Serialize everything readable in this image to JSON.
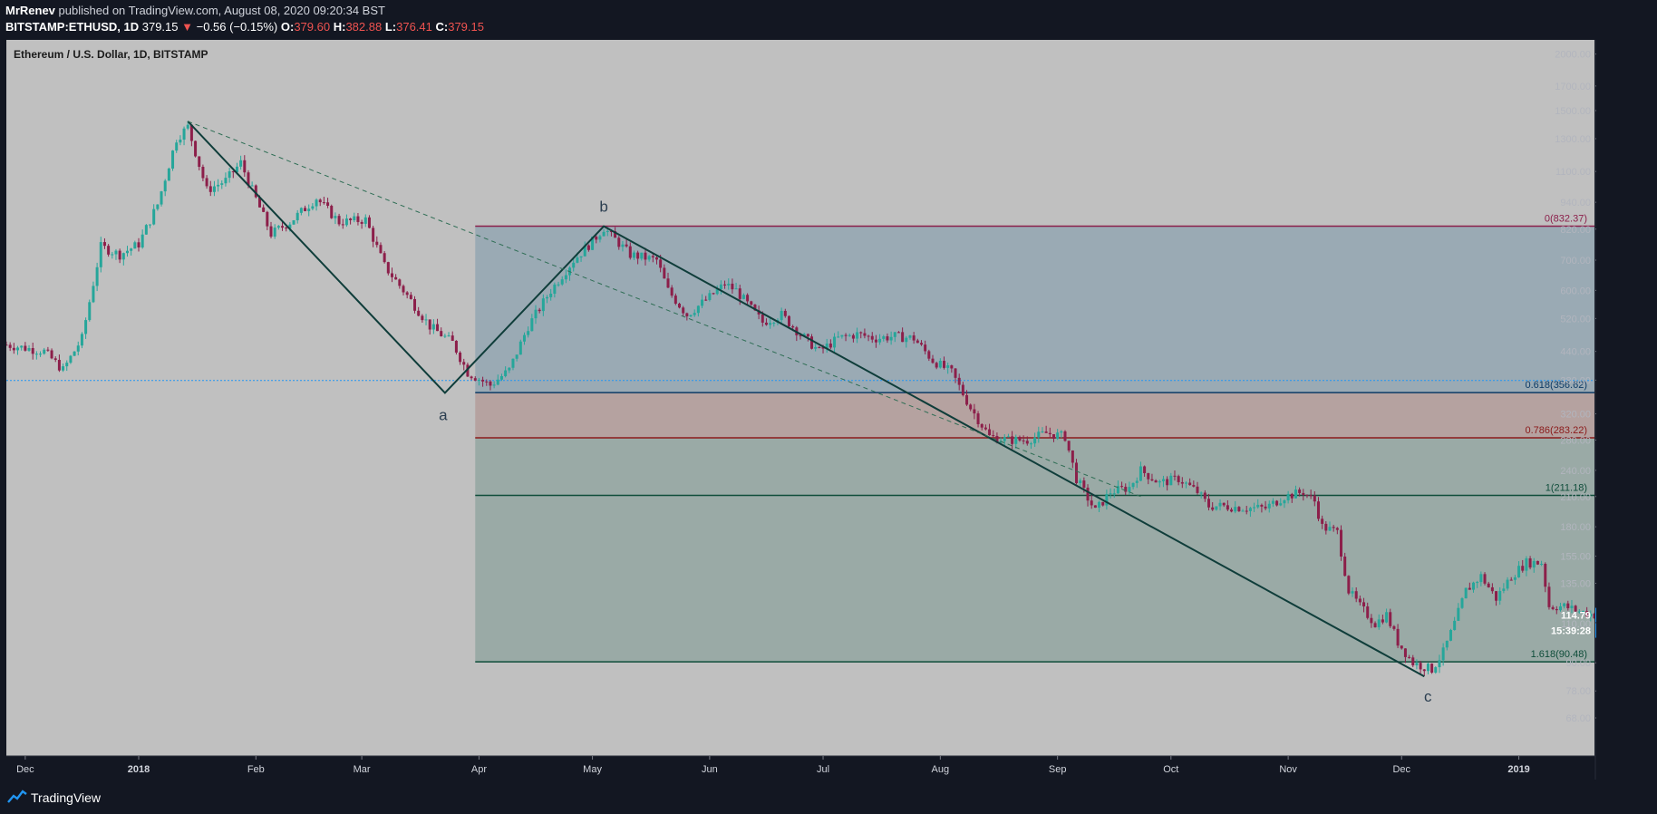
{
  "header": {
    "author": "MrRenev",
    "published": "published on TradingView.com, August 08, 2020 09:20:34 BST",
    "symbol": "BITSTAMP:ETHUSD, 1D",
    "last": "379.15",
    "change_arrow": "▼",
    "change": "−0.56 (−0.15%)",
    "o_label": "O:",
    "o": "379.60",
    "h_label": "H:",
    "h": "382.88",
    "l_label": "L:",
    "l": "376.41",
    "c_label": "C:",
    "c": "379.15"
  },
  "footer": {
    "brand": "TradingView"
  },
  "colors": {
    "bg": "#c0c0c0",
    "up": "#26a69a",
    "down": "#8c1f4a",
    "trendline": "#0f3d3a",
    "zone_top": "#9aaab4",
    "zone_mid": "#b5a2a0",
    "zone_bottom": "#9aaaa6",
    "accent": "#2196f3"
  },
  "chart_data": {
    "type": "candlestick",
    "title": "Ethereum / U.S. Dollar, 1D, BITSTAMP",
    "y_scale": "log",
    "ylim": [
      56,
      2150
    ],
    "y_ticks": [
      "2000.00",
      "1700.00",
      "1500.00",
      "1300.00",
      "1100.00",
      "940.00",
      "820.00",
      "700.00",
      "600.00",
      "520.00",
      "440.00",
      "380.00",
      "320.00",
      "280.00",
      "240.00",
      "210.00",
      "180.00",
      "155.00",
      "135.00",
      "110.00",
      "90.00",
      "78.00",
      "68.00"
    ],
    "x_ticks": [
      "Dec",
      "2018",
      "Feb",
      "Mar",
      "Apr",
      "May",
      "Jun",
      "Jul",
      "Aug",
      "Sep",
      "Oct",
      "Nov",
      "Dec",
      "2019"
    ],
    "x_tick_days": [
      5,
      35,
      66,
      94,
      125,
      155,
      186,
      216,
      247,
      278,
      308,
      339,
      369,
      400
    ],
    "x_range_days": [
      0,
      420
    ],
    "anchors": [
      {
        "day": 0,
        "price": 455
      },
      {
        "day": 10,
        "price": 440
      },
      {
        "day": 15,
        "price": 400
      },
      {
        "day": 20,
        "price": 470
      },
      {
        "day": 25,
        "price": 750
      },
      {
        "day": 30,
        "price": 720
      },
      {
        "day": 35,
        "price": 760
      },
      {
        "day": 40,
        "price": 930
      },
      {
        "day": 45,
        "price": 1300
      },
      {
        "day": 48,
        "price": 1380
      },
      {
        "day": 53,
        "price": 1000
      },
      {
        "day": 58,
        "price": 1050
      },
      {
        "day": 62,
        "price": 1150
      },
      {
        "day": 65,
        "price": 1000
      },
      {
        "day": 70,
        "price": 800
      },
      {
        "day": 75,
        "price": 850
      },
      {
        "day": 82,
        "price": 960
      },
      {
        "day": 88,
        "price": 850
      },
      {
        "day": 95,
        "price": 860
      },
      {
        "day": 100,
        "price": 680
      },
      {
        "day": 105,
        "price": 600
      },
      {
        "day": 112,
        "price": 500
      },
      {
        "day": 118,
        "price": 460
      },
      {
        "day": 122,
        "price": 395
      },
      {
        "day": 128,
        "price": 370
      },
      {
        "day": 133,
        "price": 400
      },
      {
        "day": 138,
        "price": 500
      },
      {
        "day": 144,
        "price": 600
      },
      {
        "day": 150,
        "price": 700
      },
      {
        "day": 155,
        "price": 770
      },
      {
        "day": 158,
        "price": 825
      },
      {
        "day": 165,
        "price": 720
      },
      {
        "day": 172,
        "price": 700
      },
      {
        "day": 175,
        "price": 600
      },
      {
        "day": 180,
        "price": 530
      },
      {
        "day": 186,
        "price": 580
      },
      {
        "day": 190,
        "price": 620
      },
      {
        "day": 193,
        "price": 600
      },
      {
        "day": 200,
        "price": 510
      },
      {
        "day": 205,
        "price": 530
      },
      {
        "day": 210,
        "price": 480
      },
      {
        "day": 215,
        "price": 440
      },
      {
        "day": 220,
        "price": 470
      },
      {
        "day": 225,
        "price": 480
      },
      {
        "day": 230,
        "price": 470
      },
      {
        "day": 235,
        "price": 475
      },
      {
        "day": 240,
        "price": 470
      },
      {
        "day": 245,
        "price": 420
      },
      {
        "day": 250,
        "price": 395
      },
      {
        "day": 255,
        "price": 330
      },
      {
        "day": 260,
        "price": 285
      },
      {
        "day": 265,
        "price": 280
      },
      {
        "day": 270,
        "price": 280
      },
      {
        "day": 275,
        "price": 290
      },
      {
        "day": 280,
        "price": 285
      },
      {
        "day": 283,
        "price": 230
      },
      {
        "day": 288,
        "price": 195
      },
      {
        "day": 292,
        "price": 215
      },
      {
        "day": 297,
        "price": 220
      },
      {
        "day": 300,
        "price": 240
      },
      {
        "day": 305,
        "price": 225
      },
      {
        "day": 310,
        "price": 230
      },
      {
        "day": 315,
        "price": 215
      },
      {
        "day": 318,
        "price": 200
      },
      {
        "day": 322,
        "price": 200
      },
      {
        "day": 328,
        "price": 198
      },
      {
        "day": 333,
        "price": 198
      },
      {
        "day": 338,
        "price": 210
      },
      {
        "day": 343,
        "price": 215
      },
      {
        "day": 346,
        "price": 205
      },
      {
        "day": 348,
        "price": 180
      },
      {
        "day": 352,
        "price": 175
      },
      {
        "day": 355,
        "price": 130
      },
      {
        "day": 358,
        "price": 120
      },
      {
        "day": 362,
        "price": 110
      },
      {
        "day": 365,
        "price": 115
      },
      {
        "day": 368,
        "price": 100
      },
      {
        "day": 372,
        "price": 90
      },
      {
        "day": 377,
        "price": 87
      },
      {
        "day": 380,
        "price": 95
      },
      {
        "day": 383,
        "price": 110
      },
      {
        "day": 386,
        "price": 130
      },
      {
        "day": 390,
        "price": 140
      },
      {
        "day": 394,
        "price": 125
      },
      {
        "day": 398,
        "price": 140
      },
      {
        "day": 402,
        "price": 150
      },
      {
        "day": 406,
        "price": 150
      },
      {
        "day": 408,
        "price": 120
      },
      {
        "day": 412,
        "price": 120
      },
      {
        "day": 416,
        "price": 117
      },
      {
        "day": 420,
        "price": 115
      }
    ],
    "fib_levels": [
      {
        "ratio": "0",
        "price": 832.37,
        "label": "0(832.37)",
        "color": "#8b1f4a"
      },
      {
        "ratio": "0.618",
        "price": 356.62,
        "label": "0.618(356.62)",
        "color": "#0d3b66"
      },
      {
        "ratio": "0.786",
        "price": 283.22,
        "label": "0.786(283.22)",
        "color": "#8b1a1a"
      },
      {
        "ratio": "1",
        "price": 211.18,
        "label": "1(211.18)",
        "color": "#0f4d3a"
      },
      {
        "ratio": "1.618",
        "price": 90.48,
        "label": "1.618(90.48)",
        "color": "#0f4d3a"
      }
    ],
    "fib_start_day": 124,
    "waves": [
      {
        "label": "a",
        "day": 116,
        "price": 356
      },
      {
        "label": "b",
        "day": 158,
        "price": 832
      },
      {
        "label": "c",
        "day": 375,
        "price": 84
      }
    ],
    "wave_origin": {
      "day": 48,
      "price": 1420
    },
    "projection_end": {
      "day": 300,
      "price": 210
    },
    "current_price": "114.79",
    "countdown": "15:39:28",
    "price_line": 379.15
  }
}
